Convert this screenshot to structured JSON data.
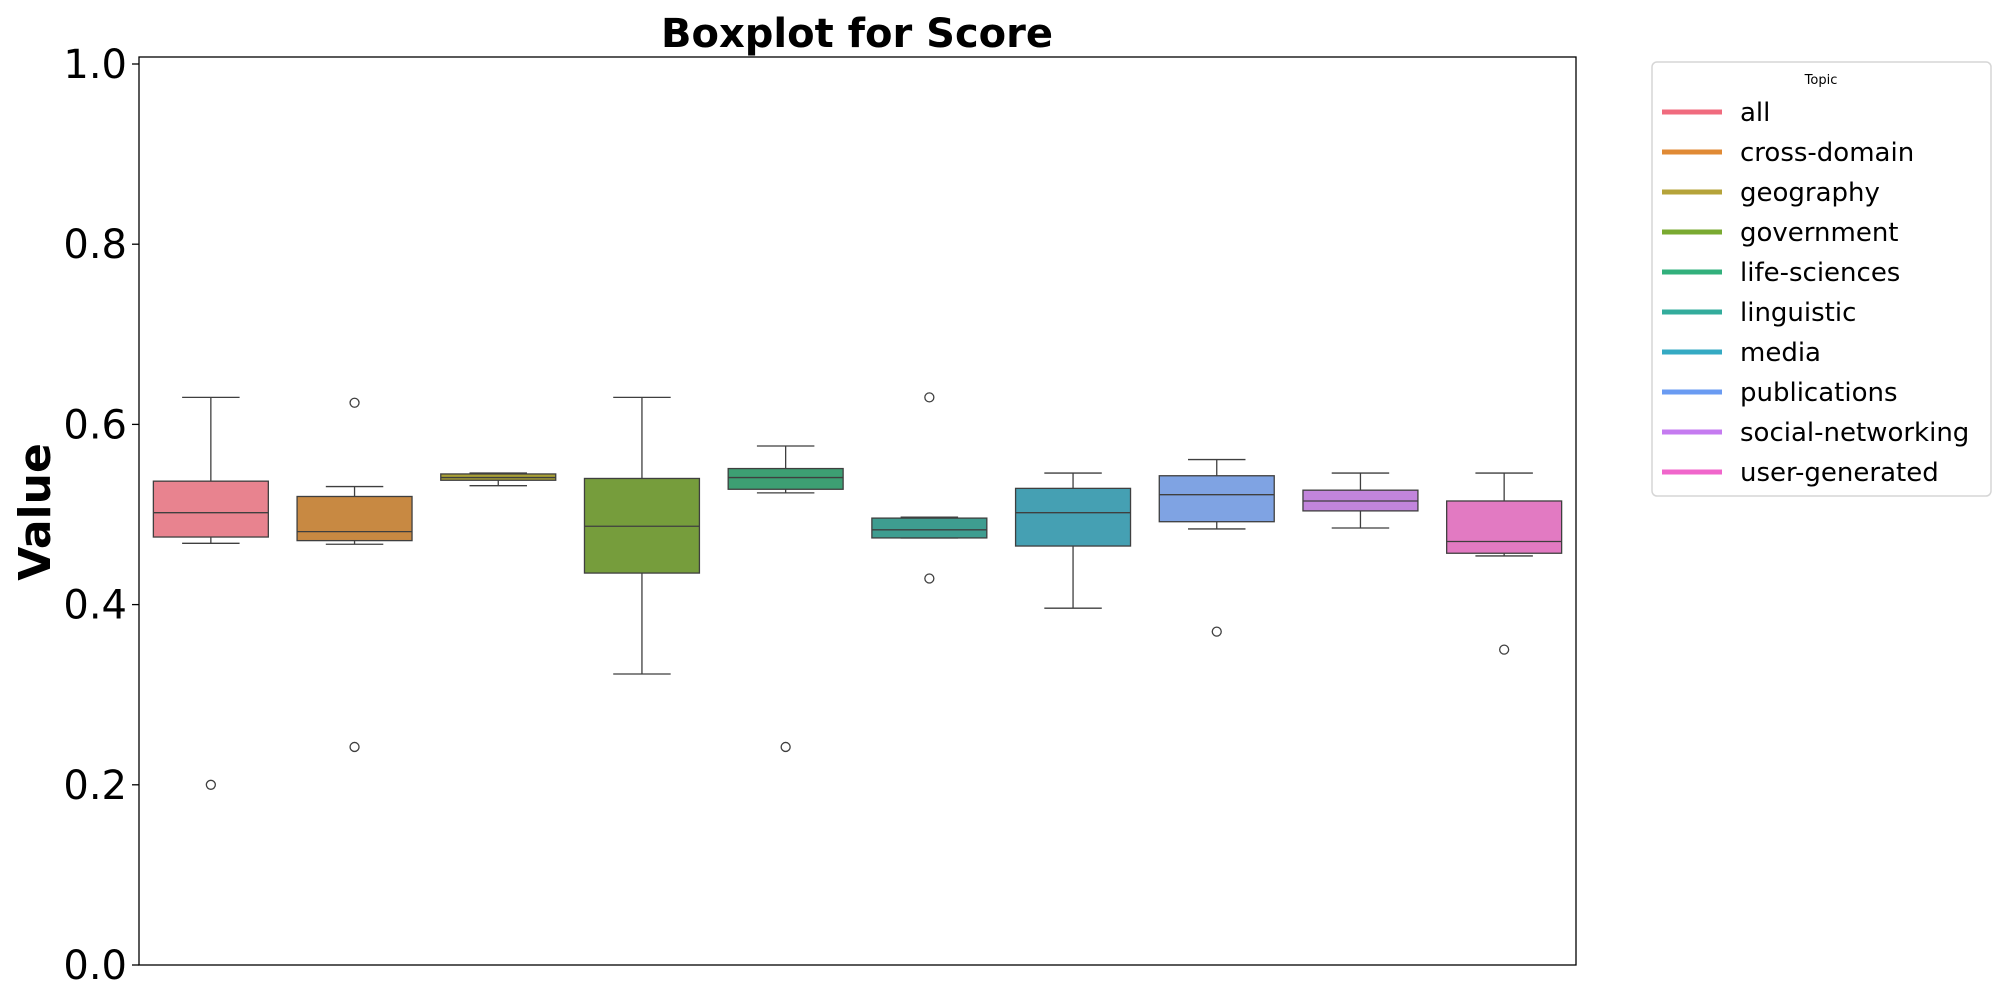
{
  "chart_data": {
    "type": "boxplot",
    "title": "Boxplot for Score",
    "xlabel": "",
    "ylabel": "Value",
    "ylim": [
      0.0,
      1.0
    ],
    "yticks": [
      0.0,
      0.2,
      0.4,
      0.6,
      0.8,
      1.0
    ],
    "ytick_labels": [
      "0.0",
      "0.2",
      "0.4",
      "0.6",
      "0.8",
      "1.0"
    ],
    "grid": false,
    "legend": {
      "title": "Topic",
      "placement": "outside-top-right"
    },
    "series": [
      {
        "name": "all",
        "color": "#e8838f",
        "line_color": "#f06b7e",
        "whisker_low": 0.468,
        "q1": 0.475,
        "median": 0.502,
        "q3": 0.537,
        "whisker_high": 0.63,
        "outliers": [
          0.2
        ]
      },
      {
        "name": "cross-domain",
        "color": "#c88942",
        "line_color": "#e08a35",
        "whisker_low": 0.467,
        "q1": 0.471,
        "median": 0.481,
        "q3": 0.52,
        "whisker_high": 0.531,
        "outliers": [
          0.624,
          0.242
        ]
      },
      {
        "name": "geography",
        "color": "#a9a036",
        "line_color": "#b5a33a",
        "whisker_low": 0.532,
        "q1": 0.538,
        "median": 0.541,
        "q3": 0.545,
        "whisker_high": 0.546,
        "outliers": []
      },
      {
        "name": "government",
        "color": "#769d3c",
        "line_color": "#7aaa31",
        "whisker_low": 0.323,
        "q1": 0.435,
        "median": 0.487,
        "q3": 0.54,
        "whisker_high": 0.63,
        "outliers": []
      },
      {
        "name": "life-sciences",
        "color": "#3d9f73",
        "line_color": "#32b07c",
        "whisker_low": 0.524,
        "q1": 0.528,
        "median": 0.541,
        "q3": 0.551,
        "whisker_high": 0.576,
        "outliers": [
          0.242
        ]
      },
      {
        "name": "linguistic",
        "color": "#3e9d90",
        "line_color": "#33ac9c",
        "whisker_low": 0.474,
        "q1": 0.474,
        "median": 0.483,
        "q3": 0.496,
        "whisker_high": 0.497,
        "outliers": [
          0.63,
          0.429
        ]
      },
      {
        "name": "media",
        "color": "#45a0b3",
        "line_color": "#35aac3",
        "whisker_low": 0.396,
        "q1": 0.465,
        "median": 0.502,
        "q3": 0.529,
        "whisker_high": 0.546,
        "outliers": []
      },
      {
        "name": "publications",
        "color": "#7fa3e3",
        "line_color": "#6a9bf2",
        "whisker_low": 0.484,
        "q1": 0.492,
        "median": 0.522,
        "q3": 0.543,
        "whisker_high": 0.561,
        "outliers": [
          0.37
        ]
      },
      {
        "name": "social-networking",
        "color": "#c285dc",
        "line_color": "#c57bf0",
        "whisker_low": 0.485,
        "q1": 0.504,
        "median": 0.515,
        "q3": 0.527,
        "whisker_high": 0.546,
        "outliers": []
      },
      {
        "name": "user-generated",
        "color": "#e27ac2",
        "line_color": "#f066cb",
        "whisker_low": 0.454,
        "q1": 0.457,
        "median": 0.47,
        "q3": 0.515,
        "whisker_high": 0.546,
        "outliers": [
          0.35
        ]
      }
    ]
  }
}
